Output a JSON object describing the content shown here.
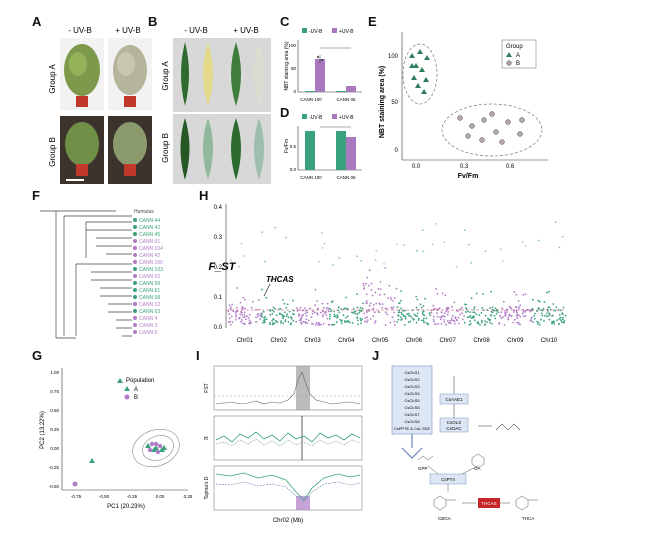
{
  "panel_letters": [
    "A",
    "B",
    "C",
    "D",
    "E",
    "F",
    "G",
    "H",
    "I",
    "J"
  ],
  "panelA": {
    "col_minus": "- UV-B",
    "col_plus": "+ UV-B",
    "row1": "Group A",
    "row2": "Group B"
  },
  "panelB": {
    "col_minus": "- UV-B",
    "col_plus": "+ UV-B",
    "row1": "Group A",
    "row2": "Group B"
  },
  "panelC": {
    "legend_minus": "-UV-B",
    "legend_plus": "+UV-B",
    "ylabel": "NBT staining area (%)",
    "categories": [
      "CANN 100",
      "CANN 06"
    ],
    "yticks": [
      "0",
      "50",
      "100"
    ]
  },
  "panelD": {
    "legend_minus": "-UV-B",
    "legend_plus": "+UV-B",
    "ylabel": "Fv/Fm",
    "categories": [
      "CANN 100",
      "CANN 06"
    ],
    "yticks": [
      "0.0",
      "0.5"
    ]
  },
  "panelE": {
    "ylabel": "NBT staining area (%)",
    "xlabel": "Fv/Fm",
    "xticks": [
      "0.0",
      "0.3",
      "0.6"
    ],
    "yticks": [
      "0",
      "50",
      "100"
    ],
    "legend_title": "Group",
    "legend_items": [
      "A",
      "B"
    ]
  },
  "panelF": {
    "root_label": "Humulus",
    "tips": [
      "CANN 44",
      "CANN 42",
      "CANN 45",
      "CANN 01",
      "CANN 104",
      "CANN 42",
      "CANN 100",
      "CANN 103",
      "CANN 02",
      "CANN 99",
      "CANN 61",
      "CANN 58",
      "CANN 12",
      "CANN 63",
      "CANN 4",
      "CANN 3",
      "CANN 6"
    ]
  },
  "panelG": {
    "legend_title": "Population",
    "legend_items": [
      "A",
      "B"
    ],
    "xlabel": "PC1 (20.23%)",
    "ylabel": "PC2 (13.22%)",
    "xticks": [
      "-0.75",
      "-0.50",
      "-0.25",
      "0.00",
      "0.25"
    ],
    "yticks": [
      "1.00",
      "0.75",
      "0.50",
      "0.25",
      "0.00",
      "-0.25",
      "-0.50"
    ]
  },
  "panelH": {
    "ylabel": "F_ST",
    "yticks": [
      "0.0",
      "0.1",
      "0.2",
      "0.3",
      "0.4"
    ],
    "annotation": "THCAS",
    "chromosomes": [
      "Chr01",
      "Chr02",
      "Chr03",
      "Chr04",
      "Chr05",
      "Chr06",
      "Chr07",
      "Chr08",
      "Chr09",
      "Chr10"
    ]
  },
  "panelI": {
    "xlabel": "Chr02 (Mb)",
    "track1_ylabel": "FST",
    "track2_ylabel": "π",
    "track3_ylabel": "Tajima's D"
  },
  "panelJ": {
    "genes": [
      "CsOLS1",
      "CsOLS2",
      "CsOLS3",
      "CsOLS4",
      "CsOLS5",
      "CsOLS6",
      "CsOLS7",
      "CsOLS8",
      "CsPPTE & CsL SEE"
    ],
    "compounds": [
      "GPP",
      "OA",
      "CBGA",
      "THCA"
    ],
    "enzymes": [
      "CsAAE1",
      "CsOLS",
      "CsOAC",
      "CsPT4"
    ],
    "highlight": "THCAS"
  },
  "colors": {
    "groupA": "#3aa17e",
    "groupB": "#b07cc6",
    "bar_minus": "#3aa17e",
    "bar_plus": "#a979c0"
  }
}
